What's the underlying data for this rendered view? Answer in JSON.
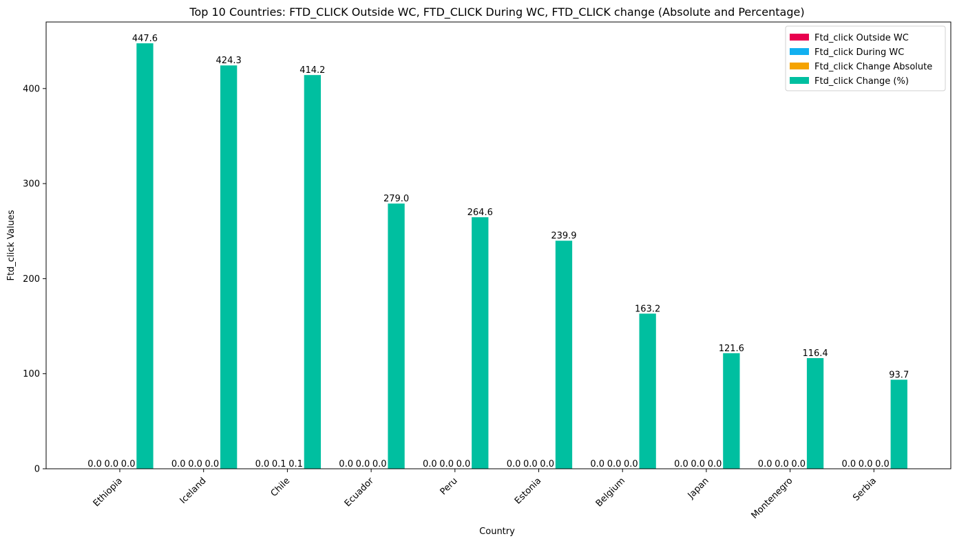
{
  "chart_data": {
    "type": "bar",
    "title": "Top 10 Countries: FTD_CLICK Outside WC, FTD_CLICK During WC, FTD_CLICK change (Absolute and Percentage)",
    "xlabel": "Country",
    "ylabel": "Ftd_click Values",
    "ylim": [
      0,
      470
    ],
    "yticks": [
      0,
      100,
      200,
      300,
      400
    ],
    "legend_position": "top-right",
    "grid": false,
    "categories": [
      "Ethiopia",
      "Iceland",
      "Chile",
      "Ecuador",
      "Peru",
      "Estonia",
      "Belgium",
      "Japan",
      "Montenegro",
      "Serbia"
    ],
    "series": [
      {
        "name": "Ftd_click Outside WC",
        "color": "#e8004e",
        "values": [
          0.0,
          0.0,
          0.0,
          0.0,
          0.0,
          0.0,
          0.0,
          0.0,
          0.0,
          0.0
        ],
        "labels": [
          "0.0",
          "0.0",
          "0.0",
          "0.0",
          "0.0",
          "0.0",
          "0.0",
          "0.0",
          "0.0",
          "0.0"
        ]
      },
      {
        "name": "Ftd_click During WC",
        "color": "#12b0f0",
        "values": [
          0.0,
          0.0,
          0.1,
          0.0,
          0.0,
          0.0,
          0.0,
          0.0,
          0.0,
          0.0
        ],
        "labels": [
          "0.0",
          "0.0",
          "0.1",
          "0.0",
          "0.0",
          "0.0",
          "0.0",
          "0.0",
          "0.0",
          "0.0"
        ]
      },
      {
        "name": "Ftd_click Change Absolute",
        "color": "#f5a300",
        "values": [
          0.0,
          0.0,
          0.1,
          0.0,
          0.0,
          0.0,
          0.0,
          0.0,
          0.0,
          0.0
        ],
        "labels": [
          "0.0",
          "0.0",
          "0.1",
          "0.0",
          "0.0",
          "0.0",
          "0.0",
          "0.0",
          "0.0",
          "0.0"
        ]
      },
      {
        "name": "Ftd_click Change (%)",
        "color": "#00bfa0",
        "values": [
          447.6,
          424.3,
          414.2,
          279.0,
          264.6,
          239.9,
          163.2,
          121.6,
          116.4,
          93.7
        ],
        "labels": [
          "447.6",
          "424.3",
          "414.2",
          "279.0",
          "264.6",
          "239.9",
          "163.2",
          "121.6",
          "116.4",
          "93.7"
        ]
      }
    ]
  }
}
